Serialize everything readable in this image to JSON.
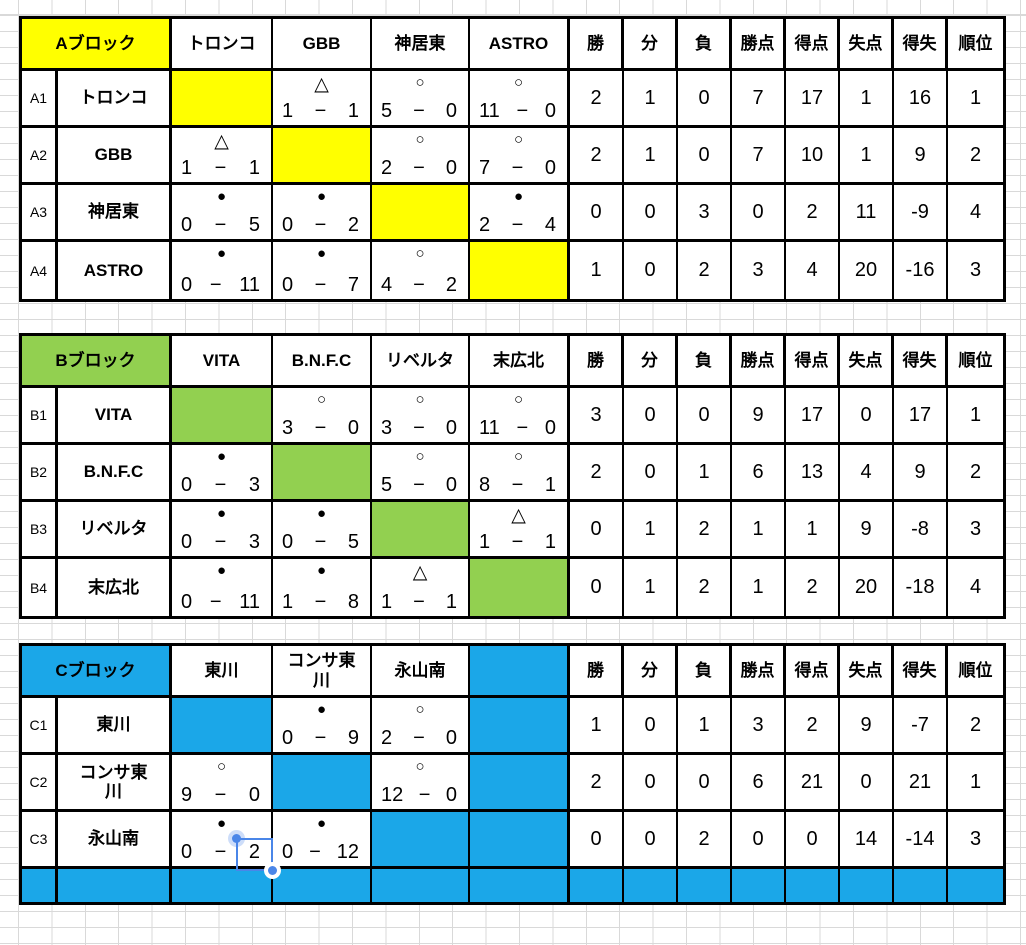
{
  "marks": {
    "win": "○",
    "draw": "△",
    "lose": "●"
  },
  "score_separator": "−",
  "stat_headers": [
    "勝",
    "分",
    "負",
    "勝点",
    "得点",
    "失点",
    "得失",
    "順位"
  ],
  "colors": {
    "block_a_accent": "#ffff00",
    "block_b_accent": "#92d050",
    "block_c_accent": "#1ba7e8",
    "grid_line": "#d9d9d9",
    "table_border": "#000000",
    "selection": "#4a86e8"
  },
  "selection": {
    "color": "#4a86e8",
    "selected_value": "2"
  },
  "blocks": [
    {
      "id": "A",
      "title": "Aブロック",
      "accent": "#ffff00",
      "opponents": [
        "トロンコ",
        "GBB",
        "神居東",
        "ASTRO"
      ],
      "footer_row": false,
      "rows": [
        {
          "label": "A1",
          "team": "トロンコ",
          "cells": [
            {
              "self": true
            },
            {
              "mark": "draw",
              "home": "1",
              "away": "1"
            },
            {
              "mark": "win",
              "home": "5",
              "away": "0"
            },
            {
              "mark": "win",
              "home": "11",
              "away": "0"
            }
          ],
          "stats": [
            "2",
            "1",
            "0",
            "7",
            "17",
            "1",
            "16",
            "1"
          ]
        },
        {
          "label": "A2",
          "team": "GBB",
          "cells": [
            {
              "mark": "draw",
              "home": "1",
              "away": "1"
            },
            {
              "self": true
            },
            {
              "mark": "win",
              "home": "2",
              "away": "0"
            },
            {
              "mark": "win",
              "home": "7",
              "away": "0"
            }
          ],
          "stats": [
            "2",
            "1",
            "0",
            "7",
            "10",
            "1",
            "9",
            "2"
          ]
        },
        {
          "label": "A3",
          "team": "神居東",
          "cells": [
            {
              "mark": "lose",
              "home": "0",
              "away": "5"
            },
            {
              "mark": "lose",
              "home": "0",
              "away": "2"
            },
            {
              "self": true
            },
            {
              "mark": "lose",
              "home": "2",
              "away": "4"
            }
          ],
          "stats": [
            "0",
            "0",
            "3",
            "0",
            "2",
            "11",
            "-9",
            "4"
          ]
        },
        {
          "label": "A4",
          "team": "ASTRO",
          "cells": [
            {
              "mark": "lose",
              "home": "0",
              "away": "11"
            },
            {
              "mark": "lose",
              "home": "0",
              "away": "7"
            },
            {
              "mark": "win",
              "home": "4",
              "away": "2"
            },
            {
              "self": true
            }
          ],
          "stats": [
            "1",
            "0",
            "2",
            "3",
            "4",
            "20",
            "-16",
            "3"
          ]
        }
      ]
    },
    {
      "id": "B",
      "title": "Bブロック",
      "accent": "#92d050",
      "opponents": [
        "VITA",
        "B.N.F.C",
        "リベルタ",
        "末広北"
      ],
      "footer_row": false,
      "rows": [
        {
          "label": "B1",
          "team": "VITA",
          "cells": [
            {
              "self": true
            },
            {
              "mark": "win",
              "home": "3",
              "away": "0"
            },
            {
              "mark": "win",
              "home": "3",
              "away": "0"
            },
            {
              "mark": "win",
              "home": "11",
              "away": "0"
            }
          ],
          "stats": [
            "3",
            "0",
            "0",
            "9",
            "17",
            "0",
            "17",
            "1"
          ]
        },
        {
          "label": "B2",
          "team": "B.N.F.C",
          "cells": [
            {
              "mark": "lose",
              "home": "0",
              "away": "3"
            },
            {
              "self": true
            },
            {
              "mark": "win",
              "home": "5",
              "away": "0"
            },
            {
              "mark": "win",
              "home": "8",
              "away": "1"
            }
          ],
          "stats": [
            "2",
            "0",
            "1",
            "6",
            "13",
            "4",
            "9",
            "2"
          ]
        },
        {
          "label": "B3",
          "team": "リベルタ",
          "cells": [
            {
              "mark": "lose",
              "home": "0",
              "away": "3"
            },
            {
              "mark": "lose",
              "home": "0",
              "away": "5"
            },
            {
              "self": true
            },
            {
              "mark": "draw",
              "home": "1",
              "away": "1"
            }
          ],
          "stats": [
            "0",
            "1",
            "2",
            "1",
            "1",
            "9",
            "-8",
            "3"
          ]
        },
        {
          "label": "B4",
          "team": "末広北",
          "cells": [
            {
              "mark": "lose",
              "home": "0",
              "away": "11"
            },
            {
              "mark": "lose",
              "home": "1",
              "away": "8"
            },
            {
              "mark": "draw",
              "home": "1",
              "away": "1"
            },
            {
              "self": true
            }
          ],
          "stats": [
            "0",
            "1",
            "2",
            "1",
            "2",
            "20",
            "-18",
            "4"
          ]
        }
      ]
    },
    {
      "id": "C",
      "title": "Cブロック",
      "accent": "#1ba7e8",
      "opponents": [
        "東川",
        "コンサ東\n川",
        "永山南",
        ""
      ],
      "footer_row": true,
      "rows": [
        {
          "label": "C1",
          "team": "東川",
          "cells": [
            {
              "self": true
            },
            {
              "mark": "lose",
              "home": "0",
              "away": "9"
            },
            {
              "mark": "win",
              "home": "2",
              "away": "0"
            },
            {
              "empty": true
            }
          ],
          "stats": [
            "1",
            "0",
            "1",
            "3",
            "2",
            "9",
            "-7",
            "2"
          ]
        },
        {
          "label": "C2",
          "team": "コンサ東\n川",
          "cells": [
            {
              "mark": "win",
              "home": "9",
              "away": "0"
            },
            {
              "self": true
            },
            {
              "mark": "win",
              "home": "12",
              "away": "0"
            },
            {
              "empty": true
            }
          ],
          "stats": [
            "2",
            "0",
            "0",
            "6",
            "21",
            "0",
            "21",
            "1"
          ]
        },
        {
          "label": "C3",
          "team": "永山南",
          "cells": [
            {
              "mark": "lose",
              "home": "0",
              "away": "2",
              "selected": true
            },
            {
              "mark": "lose",
              "home": "0",
              "away": "12"
            },
            {
              "self": true
            },
            {
              "empty": true
            }
          ],
          "stats": [
            "0",
            "0",
            "2",
            "0",
            "0",
            "14",
            "-14",
            "3"
          ]
        }
      ]
    }
  ]
}
